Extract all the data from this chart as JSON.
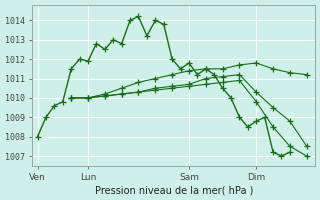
{
  "bg_color": "#cef0e8",
  "grid_color": "#ffffff",
  "line_color": "#1a6b1a",
  "xlabel": "Pression niveau de la mer( hPa )",
  "ylim": [
    1006.5,
    1014.8
  ],
  "yticks": [
    1007,
    1008,
    1009,
    1010,
    1011,
    1012,
    1013,
    1014
  ],
  "xtick_labels": [
    "Ven",
    "Lun",
    "Sam",
    "Dim"
  ],
  "vline_color": "#7a9a7a",
  "series": [
    {
      "x": [
        0,
        0.5,
        1.0,
        1.5,
        2.0,
        2.5,
        3.0,
        3.5,
        4.0,
        4.5,
        5.0,
        5.5,
        6.0,
        6.5,
        7.0,
        7.5,
        8.0,
        8.5,
        9.0,
        9.5,
        10.0,
        10.5,
        11.0,
        11.5,
        12.0,
        12.5,
        13.0,
        13.5,
        14.0,
        14.5,
        15.0,
        15.5,
        16.0
      ],
      "y": [
        1008.0,
        1009.0,
        1009.6,
        1009.8,
        1011.5,
        1012.0,
        1011.9,
        1012.8,
        1012.5,
        1013.0,
        1012.8,
        1014.0,
        1014.2,
        1013.2,
        1014.0,
        1013.8,
        1012.0,
        1011.5,
        1011.8,
        1011.2,
        1011.5,
        1011.2,
        1010.5,
        1010.0,
        1009.0,
        1008.5,
        1008.8,
        1009.0,
        1007.2,
        1007.0,
        1007.2,
        null,
        null
      ]
    },
    {
      "x": [
        2.0,
        3.0,
        4.0,
        5.0,
        6.0,
        7.0,
        8.0,
        9.0,
        10.0,
        11.0,
        12.0,
        13.0,
        14.0,
        15.0,
        16.0
      ],
      "y": [
        1010.0,
        1010.0,
        1010.2,
        1010.5,
        1010.8,
        1011.0,
        1011.2,
        1011.4,
        1011.5,
        1011.5,
        1011.7,
        1011.8,
        1011.5,
        1011.3,
        1011.2
      ]
    },
    {
      "x": [
        2.0,
        3.0,
        4.0,
        5.0,
        6.0,
        7.0,
        8.0,
        9.0,
        10.0,
        11.0,
        12.0,
        13.0,
        14.0,
        15.0,
        16.0
      ],
      "y": [
        1010.0,
        1010.0,
        1010.1,
        1010.2,
        1010.3,
        1010.5,
        1010.6,
        1010.7,
        1011.0,
        1011.1,
        1011.2,
        1010.3,
        1009.5,
        1008.8,
        1007.5
      ]
    },
    {
      "x": [
        2.0,
        3.0,
        4.0,
        5.0,
        6.0,
        7.0,
        8.0,
        9.0,
        10.0,
        11.0,
        12.0,
        13.0,
        14.0,
        15.0,
        16.0
      ],
      "y": [
        1010.0,
        1010.0,
        1010.1,
        1010.2,
        1010.3,
        1010.4,
        1010.5,
        1010.6,
        1010.7,
        1010.8,
        1010.9,
        1009.8,
        1008.5,
        1007.5,
        1007.0
      ]
    }
  ],
  "xlim": [
    -0.3,
    16.5
  ],
  "xtick_x": [
    0.0,
    3.0,
    9.0,
    13.0
  ]
}
